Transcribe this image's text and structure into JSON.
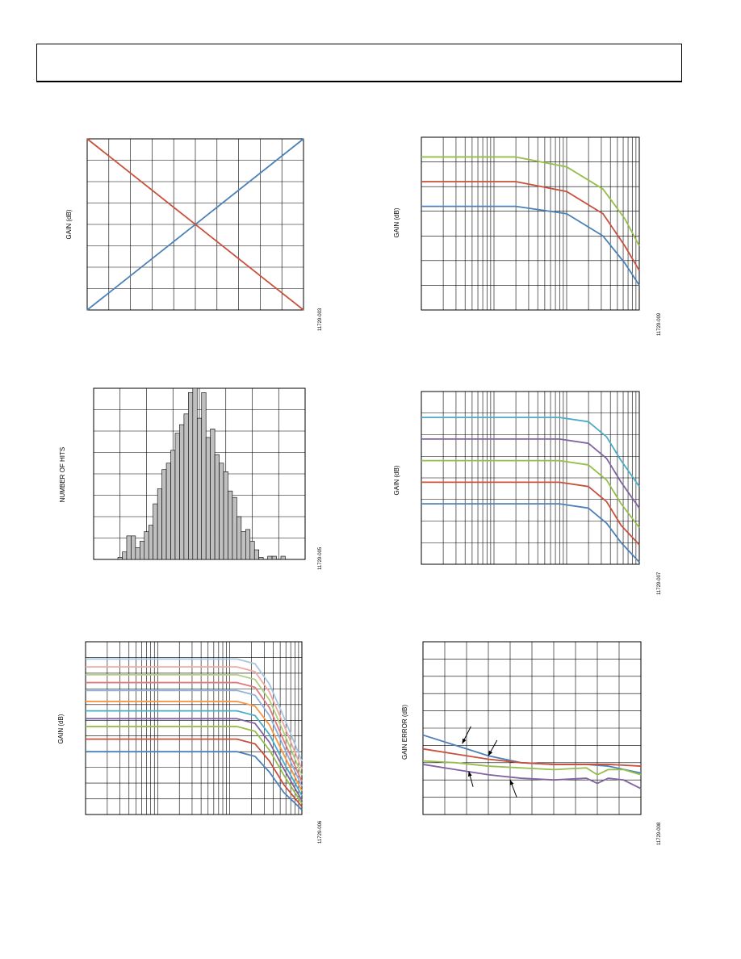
{
  "charts": [
    {
      "id": "c1",
      "type": "line",
      "x_axis": "linear",
      "ylabel": "GAIN (dB)",
      "fig_id": "11729-003",
      "x_range": [
        0,
        10
      ],
      "y_range": [
        0,
        8
      ],
      "grid_x": [
        0,
        1,
        2,
        3,
        4,
        5,
        6,
        7,
        8,
        9,
        10
      ],
      "grid_y": [
        0,
        1,
        2,
        3,
        4,
        5,
        6,
        7,
        8
      ],
      "series": [
        {
          "color": "#4c80b8",
          "points": [
            [
              0,
              0
            ],
            [
              10,
              8
            ]
          ]
        },
        {
          "color": "#c8503c",
          "points": [
            [
              0,
              8
            ],
            [
              10,
              0
            ]
          ]
        }
      ]
    },
    {
      "id": "c2",
      "type": "line",
      "x_axis": "log",
      "ylabel": "GAIN (dB)",
      "fig_id": "11729-009",
      "x_range": [
        0,
        3
      ],
      "y_range": [
        0,
        7
      ],
      "grid_y": [
        0,
        1,
        2,
        3,
        4,
        5,
        6,
        7
      ],
      "series": [
        {
          "color": "#96be4a",
          "points": [
            [
              0,
              6.2
            ],
            [
              1.3,
              6.2
            ],
            [
              2.0,
              5.8
            ],
            [
              2.5,
              4.9
            ],
            [
              2.8,
              3.7
            ],
            [
              3.0,
              2.6
            ]
          ]
        },
        {
          "color": "#c8503c",
          "points": [
            [
              0,
              5.2
            ],
            [
              1.3,
              5.2
            ],
            [
              2.0,
              4.8
            ],
            [
              2.5,
              3.9
            ],
            [
              2.8,
              2.6
            ],
            [
              3.0,
              1.6
            ]
          ]
        },
        {
          "color": "#4c80b8",
          "points": [
            [
              0,
              4.2
            ],
            [
              1.3,
              4.2
            ],
            [
              2.0,
              3.9
            ],
            [
              2.5,
              3.0
            ],
            [
              2.8,
              1.9
            ],
            [
              3.0,
              1.0
            ]
          ]
        }
      ]
    },
    {
      "id": "c3",
      "type": "bar",
      "ylabel": "NUMBER OF HITS",
      "fig_id": "11729-005",
      "x_range": [
        0,
        48
      ],
      "y_range": [
        0,
        8
      ],
      "grid_x": [
        0,
        6,
        12,
        18,
        24,
        30,
        36,
        42,
        48
      ],
      "grid_y": [
        0,
        1,
        2,
        3,
        4,
        5,
        6,
        7,
        8
      ],
      "bin_start": 5.5,
      "bin_width": 1,
      "values": [
        0.1,
        0.35,
        1.1,
        1.1,
        0.55,
        0.85,
        1.3,
        1.6,
        2.6,
        3.3,
        4.2,
        4.5,
        5.1,
        5.9,
        6.3,
        6.8,
        7.8,
        8.0,
        6.6,
        7.8,
        5.7,
        6.1,
        4.9,
        4.5,
        4.1,
        3.2,
        2.9,
        2.0,
        1.3,
        1.4,
        0.85,
        0.45,
        0.1,
        0,
        0.15,
        0.15,
        0,
        0.15
      ]
    },
    {
      "id": "c4",
      "type": "line",
      "x_axis": "log",
      "ylabel": "GAIN (dB)",
      "fig_id": "11729-007",
      "x_range": [
        0,
        3
      ],
      "y_range": [
        0,
        8
      ],
      "grid_y": [
        0,
        1,
        2,
        3,
        4,
        5,
        6,
        7,
        8
      ],
      "series": [
        {
          "color": "#4bacc6",
          "points": [
            [
              0,
              6.8
            ],
            [
              1.9,
              6.8
            ],
            [
              2.3,
              6.6
            ],
            [
              2.55,
              5.9
            ],
            [
              2.75,
              4.8
            ],
            [
              3.0,
              3.6
            ]
          ]
        },
        {
          "color": "#8064a2",
          "points": [
            [
              0,
              5.8
            ],
            [
              1.9,
              5.8
            ],
            [
              2.3,
              5.6
            ],
            [
              2.55,
              4.9
            ],
            [
              2.75,
              3.8
            ],
            [
              3.0,
              2.6
            ]
          ]
        },
        {
          "color": "#96be4a",
          "points": [
            [
              0,
              4.8
            ],
            [
              1.9,
              4.8
            ],
            [
              2.3,
              4.6
            ],
            [
              2.55,
              3.9
            ],
            [
              2.75,
              2.8
            ],
            [
              3.0,
              1.7
            ]
          ]
        },
        {
          "color": "#c8503c",
          "points": [
            [
              0,
              3.8
            ],
            [
              1.9,
              3.8
            ],
            [
              2.3,
              3.6
            ],
            [
              2.55,
              2.9
            ],
            [
              2.75,
              1.8
            ],
            [
              3.0,
              0.9
            ]
          ]
        },
        {
          "color": "#4c80b8",
          "points": [
            [
              0,
              2.8
            ],
            [
              1.9,
              2.8
            ],
            [
              2.3,
              2.6
            ],
            [
              2.55,
              1.9
            ],
            [
              2.75,
              1.0
            ],
            [
              3.0,
              0.1
            ]
          ]
        }
      ]
    },
    {
      "id": "c5",
      "type": "line",
      "x_axis": "log",
      "ylabel": "GAIN (dB)",
      "fig_id": "11729-006",
      "x_range": [
        0,
        3
      ],
      "y_range": [
        0,
        11
      ],
      "grid_y": [
        0,
        1,
        2,
        3,
        4,
        5,
        6,
        7,
        8,
        9,
        10,
        11
      ],
      "series": [
        {
          "color": "#a8c4e0",
          "points": [
            [
              0,
              9.9
            ],
            [
              2.1,
              9.9
            ],
            [
              2.35,
              9.6
            ],
            [
              2.55,
              8.3
            ],
            [
              2.75,
              6.2
            ],
            [
              3.0,
              3.4
            ]
          ]
        },
        {
          "color": "#f0a9a0",
          "points": [
            [
              0,
              9.4
            ],
            [
              2.1,
              9.4
            ],
            [
              2.35,
              9.1
            ],
            [
              2.55,
              7.8
            ],
            [
              2.75,
              5.7
            ],
            [
              3.0,
              2.9
            ]
          ]
        },
        {
          "color": "#b0cf80",
          "points": [
            [
              0,
              8.9
            ],
            [
              2.1,
              8.9
            ],
            [
              2.35,
              8.6
            ],
            [
              2.55,
              7.3
            ],
            [
              2.75,
              5.2
            ],
            [
              3.0,
              2.5
            ]
          ]
        },
        {
          "color": "#e07b7b",
          "points": [
            [
              0,
              8.4
            ],
            [
              2.1,
              8.4
            ],
            [
              2.35,
              8.1
            ],
            [
              2.55,
              6.8
            ],
            [
              2.75,
              4.7
            ],
            [
              3.0,
              2.1
            ]
          ]
        },
        {
          "color": "#8fb0d8",
          "points": [
            [
              0,
              7.9
            ],
            [
              2.1,
              7.9
            ],
            [
              2.35,
              7.6
            ],
            [
              2.55,
              6.3
            ],
            [
              2.75,
              4.3
            ],
            [
              3.0,
              1.8
            ]
          ]
        },
        {
          "color": "#f79646",
          "points": [
            [
              0,
              7.2
            ],
            [
              2.1,
              7.2
            ],
            [
              2.35,
              6.9
            ],
            [
              2.55,
              5.7
            ],
            [
              2.75,
              3.8
            ],
            [
              3.0,
              1.5
            ]
          ]
        },
        {
          "color": "#4bacc6",
          "points": [
            [
              0,
              6.6
            ],
            [
              2.1,
              6.6
            ],
            [
              2.35,
              6.3
            ],
            [
              2.55,
              5.1
            ],
            [
              2.75,
              3.3
            ],
            [
              3.0,
              1.2
            ]
          ]
        },
        {
          "color": "#8064a2",
          "points": [
            [
              0,
              6.1
            ],
            [
              2.1,
              6.1
            ],
            [
              2.35,
              5.8
            ],
            [
              2.55,
              4.6
            ],
            [
              2.75,
              2.9
            ],
            [
              3.0,
              0.9
            ]
          ]
        },
        {
          "color": "#96be4a",
          "points": [
            [
              0,
              5.6
            ],
            [
              2.1,
              5.6
            ],
            [
              2.35,
              5.3
            ],
            [
              2.55,
              4.1
            ],
            [
              2.75,
              2.5
            ],
            [
              3.0,
              0.7
            ]
          ]
        },
        {
          "color": "#c8503c",
          "points": [
            [
              0,
              4.8
            ],
            [
              2.1,
              4.8
            ],
            [
              2.35,
              4.5
            ],
            [
              2.55,
              3.4
            ],
            [
              2.75,
              1.9
            ],
            [
              3.0,
              0.5
            ]
          ]
        },
        {
          "color": "#4c80b8",
          "points": [
            [
              0,
              4.0
            ],
            [
              2.1,
              4.0
            ],
            [
              2.35,
              3.7
            ],
            [
              2.55,
              2.7
            ],
            [
              2.75,
              1.4
            ],
            [
              3.0,
              0.3
            ]
          ]
        }
      ]
    },
    {
      "id": "c6",
      "type": "line",
      "x_axis": "linear",
      "ylabel": "GAIN ERROR (dB)",
      "fig_id": "11729-008",
      "x_range": [
        0,
        10
      ],
      "y_range": [
        0,
        10
      ],
      "grid_x": [
        0,
        1,
        2,
        3,
        4,
        5,
        6,
        7,
        8,
        9,
        10
      ],
      "grid_y": [
        0,
        1,
        2,
        3,
        4,
        5,
        6,
        7,
        8,
        9,
        10
      ],
      "series": [
        {
          "color": "#4c80b8",
          "points": [
            [
              0,
              4.6
            ],
            [
              1.5,
              4.0
            ],
            [
              3,
              3.4
            ],
            [
              4.5,
              3.0
            ],
            [
              6,
              2.9
            ],
            [
              7.5,
              2.9
            ],
            [
              8.5,
              2.8
            ],
            [
              10,
              2.4
            ]
          ]
        },
        {
          "color": "#c8503c",
          "points": [
            [
              0,
              3.8
            ],
            [
              1.5,
              3.5
            ],
            [
              3,
              3.2
            ],
            [
              4.5,
              3.0
            ],
            [
              6,
              2.9
            ],
            [
              7.5,
              2.9
            ],
            [
              8.5,
              2.9
            ],
            [
              10,
              2.8
            ]
          ]
        },
        {
          "color": "#96be4a",
          "points": [
            [
              0,
              3.1
            ],
            [
              1.5,
              3.0
            ],
            [
              3,
              2.8
            ],
            [
              4.5,
              2.7
            ],
            [
              6,
              2.6
            ],
            [
              7.5,
              2.7
            ],
            [
              8,
              2.3
            ],
            [
              8.5,
              2.6
            ],
            [
              9.2,
              2.6
            ],
            [
              10,
              2.3
            ]
          ]
        },
        {
          "color": "#8064a2",
          "points": [
            [
              0,
              2.9
            ],
            [
              1.5,
              2.6
            ],
            [
              3,
              2.3
            ],
            [
              4.5,
              2.1
            ],
            [
              6,
              2.0
            ],
            [
              7.5,
              2.1
            ],
            [
              8,
              1.8
            ],
            [
              8.5,
              2.1
            ],
            [
              9.2,
              2.0
            ],
            [
              10,
              1.5
            ]
          ]
        }
      ],
      "arrows": [
        {
          "from": [
            2.2,
            5.1
          ],
          "to": [
            1.8,
            4.1
          ]
        },
        {
          "from": [
            3.4,
            4.3
          ],
          "to": [
            3.0,
            3.4
          ]
        },
        {
          "from": [
            2.3,
            1.6
          ],
          "to": [
            2.1,
            2.5
          ]
        },
        {
          "from": [
            4.3,
            1.0
          ],
          "to": [
            4.0,
            2.0
          ]
        }
      ]
    }
  ]
}
